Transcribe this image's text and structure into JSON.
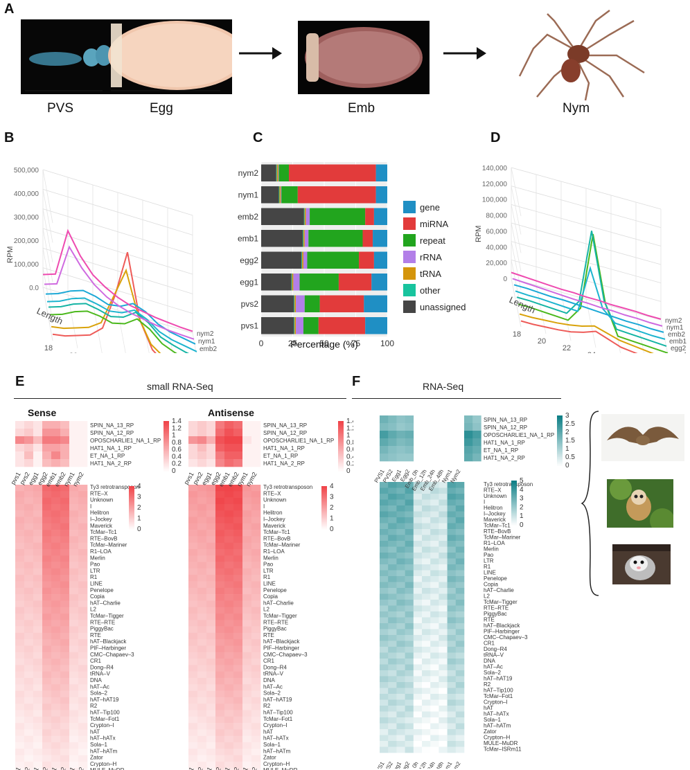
{
  "panels": {
    "a": "A",
    "b": "B",
    "c": "C",
    "d": "D",
    "e": "E",
    "f": "F"
  },
  "panel_a": {
    "stages": [
      "PVS",
      "Egg",
      "Emb",
      "Nym"
    ]
  },
  "section_headers": {
    "small_rna": "small RNA-Seq",
    "rna_seq": "RNA-Seq",
    "sense": "Sense",
    "antisense": "Antisense"
  },
  "colors": {
    "gene": "#1f8fc4",
    "miRNA": "#e23b3b",
    "repeat": "#22a51e",
    "rRNA": "#b27fe8",
    "tRNA": "#d4950b",
    "other": "#18c49e",
    "unassigned": "#454545",
    "red_heat": "#f0454a",
    "teal_heat": "#0d7f86"
  },
  "chart_data": [
    {
      "type": "line",
      "panel": "B",
      "title": "",
      "xlabel": "Length",
      "ylabel": "RPM",
      "y_ticks": [
        "0.0",
        "100,000",
        "200,000",
        "300,000",
        "400,000",
        "500,000"
      ],
      "x_ticks": [
        "18",
        "20",
        "22",
        "24",
        "26",
        "28",
        "30"
      ],
      "series_labels": [
        "nym2",
        "nym1",
        "emb2",
        "emb1",
        "egg2",
        "egg1",
        "pvs2",
        "pvs1"
      ],
      "series": [
        {
          "name": "pvs1",
          "values": [
            60000,
            80000,
            300000,
            200000,
            130000,
            90000,
            60000,
            40000,
            30000,
            20000,
            15000,
            10000,
            8000
          ]
        },
        {
          "name": "pvs2",
          "values": [
            50000,
            70000,
            260000,
            180000,
            120000,
            80000,
            55000,
            38000,
            28000,
            18000,
            12000,
            9000,
            7000
          ]
        },
        {
          "name": "egg1",
          "values": [
            40000,
            60000,
            90000,
            110000,
            100000,
            80000,
            90000,
            120000,
            100000,
            60000,
            40000,
            30000,
            20000
          ]
        },
        {
          "name": "egg2",
          "values": [
            40000,
            60000,
            90000,
            110000,
            100000,
            85000,
            95000,
            125000,
            100000,
            60000,
            40000,
            30000,
            20000
          ]
        },
        {
          "name": "emb1",
          "values": [
            50000,
            70000,
            100000,
            120000,
            110000,
            95000,
            110000,
            150000,
            120000,
            70000,
            50000,
            35000,
            25000
          ]
        },
        {
          "name": "emb2",
          "values": [
            50000,
            70000,
            100000,
            120000,
            115000,
            100000,
            115000,
            155000,
            125000,
            75000,
            52000,
            36000,
            26000
          ]
        },
        {
          "name": "nym1",
          "values": [
            30000,
            40000,
            60000,
            80000,
            120000,
            260000,
            400000,
            200000,
            90000,
            50000,
            30000,
            20000,
            15000
          ]
        },
        {
          "name": "nym2",
          "values": [
            30000,
            40000,
            60000,
            80000,
            130000,
            300000,
            520000,
            220000,
            100000,
            55000,
            32000,
            22000,
            16000
          ]
        }
      ]
    },
    {
      "type": "bar",
      "panel": "C",
      "orientation": "horizontal",
      "stacked": true,
      "xlabel": "Percentage (%)",
      "x_ticks": [
        "0",
        "25",
        "50",
        "75",
        "100"
      ],
      "xlim": [
        0,
        100
      ],
      "categories": [
        "nym2",
        "nym1",
        "emb2",
        "emb1",
        "egg2",
        "egg1",
        "pvs2",
        "pvs1"
      ],
      "legend": [
        "gene",
        "miRNA",
        "repeat",
        "rRNA",
        "tRNA",
        "other",
        "unassigned"
      ],
      "series": [
        {
          "name": "unassigned",
          "values": [
            12,
            14,
            34,
            33,
            32,
            24,
            26,
            26
          ]
        },
        {
          "name": "other",
          "values": [
            0.5,
            0.5,
            0.5,
            0.5,
            0.5,
            0.5,
            0.5,
            0.5
          ]
        },
        {
          "name": "tRNA",
          "values": [
            1,
            1,
            1,
            1,
            1,
            1,
            1,
            1
          ]
        },
        {
          "name": "rRNA",
          "values": [
            0.5,
            0.5,
            3,
            3,
            3,
            5,
            7,
            6
          ]
        },
        {
          "name": "repeat",
          "values": [
            8,
            13,
            44,
            43,
            41,
            31,
            12,
            12
          ]
        },
        {
          "name": "miRNA",
          "values": [
            69,
            62,
            7,
            8,
            12,
            26,
            35,
            37
          ]
        },
        {
          "name": "gene",
          "values": [
            9,
            9,
            10.5,
            11.5,
            10.5,
            12.5,
            18.5,
            17.5
          ]
        }
      ]
    },
    {
      "type": "line",
      "panel": "D",
      "xlabel": "Length",
      "ylabel": "RPM",
      "y_ticks": [
        "0",
        "20,000",
        "40,000",
        "60,000",
        "80,000",
        "100,000",
        "120,000",
        "140,000"
      ],
      "x_ticks": [
        "18",
        "20",
        "22",
        "24",
        "26",
        "28",
        "30"
      ],
      "series_labels": [
        "nym2",
        "nym1",
        "emb2",
        "emb1",
        "egg2",
        "egg1",
        "pvs2",
        "pvs1"
      ],
      "series": [
        {
          "name": "pvs1",
          "values": [
            8000,
            7000,
            6000,
            5000,
            4000,
            4000,
            3000,
            3000,
            2000,
            2000,
            2000,
            1000,
            1000
          ]
        },
        {
          "name": "pvs2",
          "values": [
            9000,
            8000,
            7000,
            6000,
            5000,
            4000,
            4000,
            3000,
            3000,
            2000,
            2000,
            1000,
            1000
          ]
        },
        {
          "name": "egg1",
          "values": [
            10000,
            10000,
            9000,
            8000,
            8000,
            7000,
            6000,
            5000,
            4000,
            3000,
            3000,
            2000,
            2000
          ]
        },
        {
          "name": "egg2",
          "values": [
            11000,
            10000,
            10000,
            9000,
            8000,
            7000,
            70000,
            20000,
            5000,
            4000,
            3000,
            2000,
            2000
          ]
        },
        {
          "name": "emb1",
          "values": [
            12000,
            12000,
            11000,
            10000,
            9000,
            30000,
            130000,
            40000,
            6000,
            5000,
            4000,
            3000,
            2000
          ]
        },
        {
          "name": "emb2",
          "values": [
            12000,
            12000,
            11000,
            10000,
            9000,
            30000,
            135000,
            45000,
            6000,
            5000,
            4000,
            3000,
            2000
          ]
        },
        {
          "name": "nym1",
          "values": [
            8000,
            8000,
            9000,
            10000,
            12000,
            15000,
            20000,
            15000,
            10000,
            8000,
            6000,
            4000,
            3000
          ]
        },
        {
          "name": "nym2",
          "values": [
            8000,
            8000,
            9000,
            10000,
            12000,
            16000,
            22000,
            16000,
            10000,
            8000,
            6000,
            4000,
            3000
          ]
        }
      ]
    },
    {
      "type": "heatmap",
      "panel": "E",
      "title": "small RNA-Seq",
      "columns": [
        "pvs1",
        "pvs2",
        "egg1",
        "egg2",
        "emb1",
        "emb2",
        "nym1",
        "nym2"
      ],
      "top_rows": [
        "SPIN_NA_13_RP",
        "SPIN_NA_12_RP",
        "OPOSCHARLIE1_NA_1_RP",
        "HAT1_NA_1_RP",
        "ET_NA_1_RP",
        "HAT1_NA_2_RP"
      ],
      "top_scale": [
        "1.4",
        "1.2",
        "1",
        "0.8",
        "0.6",
        "0.4",
        "0.2",
        "0"
      ],
      "bottom_scale": [
        "4",
        "3",
        "2",
        "1",
        "0"
      ],
      "sense_top": [
        [
          0.2,
          0.3,
          0.2,
          0.6,
          0.6,
          0.5,
          0.1,
          0.1
        ],
        [
          0.3,
          0.4,
          0.2,
          0.8,
          0.8,
          0.6,
          0.1,
          0.1
        ],
        [
          0.9,
          0.8,
          0.5,
          1.0,
          1.0,
          0.9,
          0.1,
          0.1
        ],
        [
          0.3,
          0.4,
          0.2,
          0.7,
          0.7,
          0.6,
          0.1,
          0.1
        ],
        [
          0.2,
          0.5,
          0.1,
          0.6,
          0.9,
          0.6,
          0.1,
          0.1
        ],
        [
          0.2,
          0.3,
          0.1,
          0.5,
          0.6,
          0.5,
          0.1,
          0.1
        ]
      ],
      "antisense_top": [
        [
          0.3,
          0.4,
          0.3,
          1.0,
          1.2,
          1.1,
          0.1,
          0.1
        ],
        [
          0.3,
          0.4,
          0.3,
          1.1,
          1.3,
          1.2,
          0.1,
          0.1
        ],
        [
          0.8,
          0.9,
          0.6,
          1.3,
          1.4,
          1.4,
          0.2,
          0.1
        ],
        [
          0.3,
          0.5,
          0.3,
          1.2,
          1.3,
          1.3,
          0.1,
          0.1
        ],
        [
          0.3,
          0.4,
          0.3,
          1.0,
          1.2,
          1.2,
          0.1,
          0.1
        ],
        [
          0.2,
          0.3,
          0.2,
          0.9,
          1.1,
          1.0,
          0.1,
          0.1
        ]
      ]
    },
    {
      "type": "heatmap",
      "panel": "F",
      "title": "RNA-Seq",
      "columns": [
        "PVS1",
        "PVS2",
        "Egg1",
        "Egg2",
        "Emb_0h",
        "Emb_12h",
        "Emb_24h",
        "Emb_48h",
        "Nym1",
        "Nym2"
      ],
      "top_rows": [
        "SPIN_NA_13_RP",
        "SPIN_NA_12_RP",
        "OPOSCHARLIE1_NA_1_RP",
        "HAT1_NA_1_RP",
        "ET_NA_1_RP",
        "HAT1_NA_2_RP"
      ],
      "top_scale": [
        "3",
        "2.5",
        "2",
        "1.5",
        "1",
        "0.5",
        "0"
      ],
      "bottom_scale": [
        "5",
        "4",
        "3",
        "2",
        "1",
        "0"
      ],
      "top_values": [
        [
          1.8,
          1.6,
          1.4,
          1.5,
          0,
          0,
          0,
          0,
          1.6,
          1.3
        ],
        [
          1.6,
          1.5,
          1.3,
          1.4,
          0,
          0,
          0,
          0,
          1.7,
          1.4
        ],
        [
          2.3,
          2.0,
          1.8,
          1.9,
          0,
          0,
          0,
          0,
          2.6,
          2.3
        ],
        [
          2.0,
          1.8,
          1.6,
          1.7,
          0,
          0,
          0,
          0,
          2.4,
          2.1
        ],
        [
          1.7,
          1.5,
          1.4,
          1.5,
          0,
          0,
          0,
          0,
          2.1,
          1.9
        ],
        [
          1.5,
          1.4,
          1.3,
          1.3,
          0,
          0,
          0,
          0,
          2.0,
          1.7
        ]
      ]
    }
  ],
  "te_rows": [
    "Ty3 retrotransposon",
    "RTE–X",
    "Unknown",
    "I",
    "Helitron",
    "I–Jockey",
    "Maverick",
    "TcMar–Tc1",
    "RTE–BovB",
    "TcMar–Mariner",
    "R1–LOA",
    "Merlin",
    "Pao",
    "LTR",
    "R1",
    "LINE",
    "Penelope",
    "Copia",
    "hAT–Charlie",
    "L2",
    "TcMar–Tigger",
    "RTE–RTE",
    "PiggyBac",
    "RTE",
    "hAT–Blackjack",
    "PIF–Harbinger",
    "CMC–Chapaev–3",
    "CR1",
    "Dong–R4",
    "tRNA–V",
    "DNA",
    "hAT–Ac",
    "Sola–2",
    "hAT–hAT19",
    "R2",
    "hAT–Tip100",
    "TcMar–Fot1",
    "Crypton–I",
    "hAT",
    "hAT–hATx",
    "Sola–1",
    "hAT–hATm",
    "Zator",
    "Crypton–H",
    "MULE–MuDR",
    "TcMar–ISRm11"
  ],
  "f_rows_bottom": [
    "Ty3 retrotransposon",
    "RTE–X",
    "Unknown",
    "I",
    "Helitron",
    "I–Jockey",
    "Maverick",
    "TcMar–Tc1",
    "RTE–BovB",
    "TcMar–Mariner",
    "R1–LOA",
    "Merlin",
    "Pao",
    "LTR",
    "R1",
    "LINE",
    "Penelope",
    "Copia",
    "hAT–Charlie",
    "L2",
    "TcMar–Tigger",
    "RTE–RTE",
    "PiggyBac",
    "RTE",
    "hAT–Blackjack",
    "PIF–Harbinger",
    "CMC–Chapaev–3",
    "CR1",
    "Dong–R4",
    "tRNA–V",
    "DNA",
    "hAT–Ac",
    "Sola–2",
    "hAT–hAT19",
    "R2",
    "hAT–Tip100",
    "TcMar–Fot1",
    "Crypton–I",
    "hAT",
    "hAT–hATx",
    "Sola–1",
    "hAT–hATm",
    "Zator",
    "Crypton–H",
    "MULE–MuDR",
    "TcMar–ISRm11"
  ]
}
